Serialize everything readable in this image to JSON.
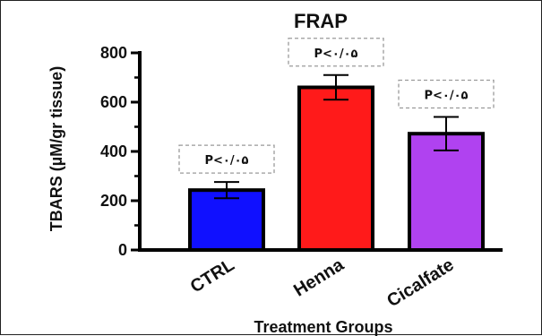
{
  "chart_data": {
    "type": "bar",
    "title": "FRAP",
    "xlabel": "Treatment Groups",
    "ylabel": "TBARS (µM/gr tissue)",
    "categories": [
      "CTRL",
      "Henna",
      "Cicalfate"
    ],
    "values": [
      243,
      660,
      472
    ],
    "errors": [
      33,
      50,
      68
    ],
    "colors": [
      "#1010ff",
      "#ff1a1a",
      "#b042f0"
    ],
    "ylim": [
      0,
      800
    ],
    "yticks": [
      "0",
      "200",
      "400",
      "600",
      "800"
    ],
    "annotations": [
      "P<۰/۰۵",
      "P<۰/۰۵",
      "P<۰/۰۵"
    ],
    "grid": false
  }
}
